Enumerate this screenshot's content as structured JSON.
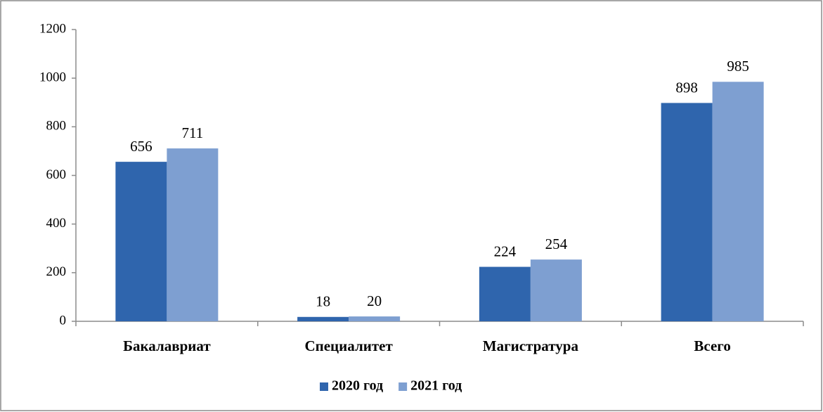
{
  "chart_data": {
    "type": "bar",
    "categories": [
      "Бакалавриат",
      "Специалитет",
      "Магистратура",
      "Всего"
    ],
    "series": [
      {
        "name": "2020 год",
        "color": "#2f65ad",
        "values": [
          656,
          18,
          224,
          898
        ]
      },
      {
        "name": "2021 год",
        "color": "#7e9fd1",
        "values": [
          711,
          20,
          254,
          985
        ]
      }
    ],
    "ylim": [
      0,
      1200
    ],
    "yticks": [
      0,
      200,
      400,
      600,
      800,
      1000,
      1200
    ],
    "grid": false,
    "legend": "bottom"
  }
}
